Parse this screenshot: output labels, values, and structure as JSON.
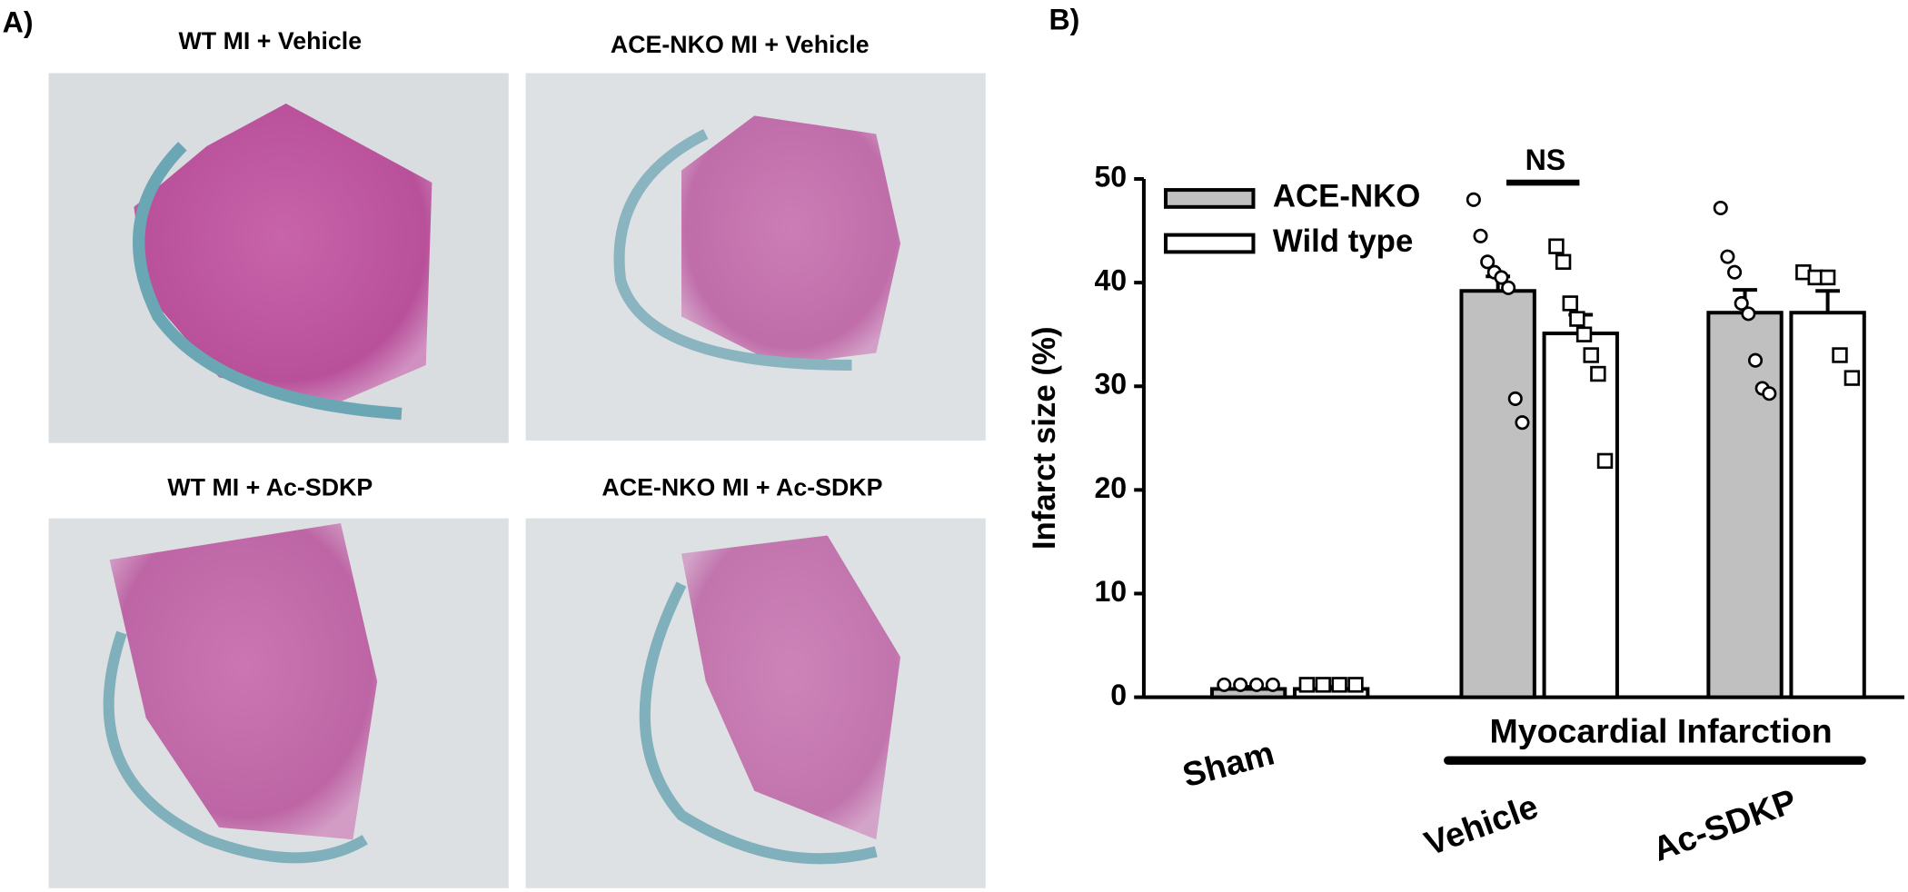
{
  "panel_a": {
    "label": "A)",
    "images": [
      {
        "title": "WT MI + Vehicle"
      },
      {
        "title": "ACE-NKO MI + Vehicle"
      },
      {
        "title": "WT MI + Ac-SDKP"
      },
      {
        "title": "ACE-NKO MI + Ac-SDKP"
      }
    ]
  },
  "chart_data": {
    "type": "bar",
    "panel_label": "B)",
    "categories": [
      "Sham",
      "Vehicle",
      "Ac-SDKP"
    ],
    "group_label": "Myocardial Infarction",
    "annotation": "NS",
    "ylabel": "Infarct size (%)",
    "ylim": [
      0,
      50
    ],
    "yticks": [
      0,
      10,
      20,
      30,
      40,
      50
    ],
    "legend": "upper left",
    "series": [
      {
        "name": "ACE-NKO",
        "color": "#c0c0c0",
        "marker": "circle",
        "values": [
          0.8,
          39.2,
          37.1
        ],
        "errors": [
          0.2,
          1.4,
          2.2
        ],
        "points": [
          [
            1.2,
            1.2,
            1.2,
            1.2
          ],
          [
            48,
            44.5,
            42,
            41,
            40.5,
            39.5,
            28.8,
            26.5
          ],
          [
            47.2,
            42.5,
            41,
            38,
            37,
            32.5,
            29.8,
            29.3
          ]
        ]
      },
      {
        "name": "Wild type",
        "color": "#ffffff",
        "marker": "square",
        "values": [
          0.8,
          35.1,
          37.1
        ],
        "errors": [
          0.2,
          1.8,
          2.1
        ],
        "points": [
          [
            1.2,
            1.2,
            1.2,
            1.2
          ],
          [
            43.5,
            42,
            38,
            36.5,
            35,
            33,
            31.2,
            22.8
          ],
          [
            41,
            40.5,
            40.5,
            33,
            30.8
          ]
        ]
      }
    ]
  }
}
